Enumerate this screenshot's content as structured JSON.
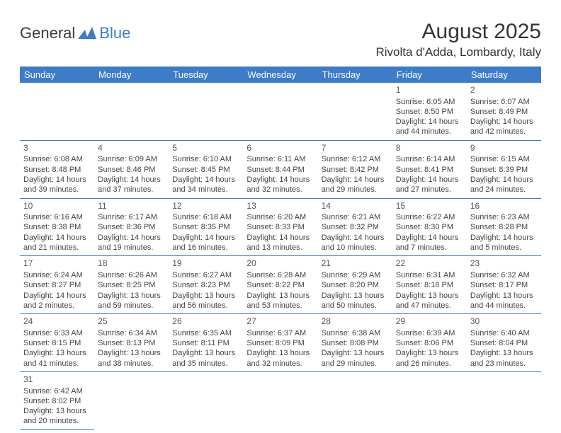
{
  "logo": {
    "text_general": "General",
    "text_blue": "Blue"
  },
  "header": {
    "month_title": "August 2025",
    "location": "Rivolta d'Adda, Lombardy, Italy"
  },
  "colors": {
    "header_bg": "#3d7cc9",
    "header_text": "#ffffff",
    "cell_border": "#3d7cc9",
    "body_text": "#444444"
  },
  "daynames": [
    "Sunday",
    "Monday",
    "Tuesday",
    "Wednesday",
    "Thursday",
    "Friday",
    "Saturday"
  ],
  "weeks": [
    [
      null,
      null,
      null,
      null,
      null,
      {
        "n": "1",
        "sr": "Sunrise: 6:05 AM",
        "ss": "Sunset: 8:50 PM",
        "d1": "Daylight: 14 hours",
        "d2": "and 44 minutes."
      },
      {
        "n": "2",
        "sr": "Sunrise: 6:07 AM",
        "ss": "Sunset: 8:49 PM",
        "d1": "Daylight: 14 hours",
        "d2": "and 42 minutes."
      }
    ],
    [
      {
        "n": "3",
        "sr": "Sunrise: 6:08 AM",
        "ss": "Sunset: 8:48 PM",
        "d1": "Daylight: 14 hours",
        "d2": "and 39 minutes."
      },
      {
        "n": "4",
        "sr": "Sunrise: 6:09 AM",
        "ss": "Sunset: 8:46 PM",
        "d1": "Daylight: 14 hours",
        "d2": "and 37 minutes."
      },
      {
        "n": "5",
        "sr": "Sunrise: 6:10 AM",
        "ss": "Sunset: 8:45 PM",
        "d1": "Daylight: 14 hours",
        "d2": "and 34 minutes."
      },
      {
        "n": "6",
        "sr": "Sunrise: 6:11 AM",
        "ss": "Sunset: 8:44 PM",
        "d1": "Daylight: 14 hours",
        "d2": "and 32 minutes."
      },
      {
        "n": "7",
        "sr": "Sunrise: 6:12 AM",
        "ss": "Sunset: 8:42 PM",
        "d1": "Daylight: 14 hours",
        "d2": "and 29 minutes."
      },
      {
        "n": "8",
        "sr": "Sunrise: 6:14 AM",
        "ss": "Sunset: 8:41 PM",
        "d1": "Daylight: 14 hours",
        "d2": "and 27 minutes."
      },
      {
        "n": "9",
        "sr": "Sunrise: 6:15 AM",
        "ss": "Sunset: 8:39 PM",
        "d1": "Daylight: 14 hours",
        "d2": "and 24 minutes."
      }
    ],
    [
      {
        "n": "10",
        "sr": "Sunrise: 6:16 AM",
        "ss": "Sunset: 8:38 PM",
        "d1": "Daylight: 14 hours",
        "d2": "and 21 minutes."
      },
      {
        "n": "11",
        "sr": "Sunrise: 6:17 AM",
        "ss": "Sunset: 8:36 PM",
        "d1": "Daylight: 14 hours",
        "d2": "and 19 minutes."
      },
      {
        "n": "12",
        "sr": "Sunrise: 6:18 AM",
        "ss": "Sunset: 8:35 PM",
        "d1": "Daylight: 14 hours",
        "d2": "and 16 minutes."
      },
      {
        "n": "13",
        "sr": "Sunrise: 6:20 AM",
        "ss": "Sunset: 8:33 PM",
        "d1": "Daylight: 14 hours",
        "d2": "and 13 minutes."
      },
      {
        "n": "14",
        "sr": "Sunrise: 6:21 AM",
        "ss": "Sunset: 8:32 PM",
        "d1": "Daylight: 14 hours",
        "d2": "and 10 minutes."
      },
      {
        "n": "15",
        "sr": "Sunrise: 6:22 AM",
        "ss": "Sunset: 8:30 PM",
        "d1": "Daylight: 14 hours",
        "d2": "and 7 minutes."
      },
      {
        "n": "16",
        "sr": "Sunrise: 6:23 AM",
        "ss": "Sunset: 8:28 PM",
        "d1": "Daylight: 14 hours",
        "d2": "and 5 minutes."
      }
    ],
    [
      {
        "n": "17",
        "sr": "Sunrise: 6:24 AM",
        "ss": "Sunset: 8:27 PM",
        "d1": "Daylight: 14 hours",
        "d2": "and 2 minutes."
      },
      {
        "n": "18",
        "sr": "Sunrise: 6:26 AM",
        "ss": "Sunset: 8:25 PM",
        "d1": "Daylight: 13 hours",
        "d2": "and 59 minutes."
      },
      {
        "n": "19",
        "sr": "Sunrise: 6:27 AM",
        "ss": "Sunset: 8:23 PM",
        "d1": "Daylight: 13 hours",
        "d2": "and 56 minutes."
      },
      {
        "n": "20",
        "sr": "Sunrise: 6:28 AM",
        "ss": "Sunset: 8:22 PM",
        "d1": "Daylight: 13 hours",
        "d2": "and 53 minutes."
      },
      {
        "n": "21",
        "sr": "Sunrise: 6:29 AM",
        "ss": "Sunset: 8:20 PM",
        "d1": "Daylight: 13 hours",
        "d2": "and 50 minutes."
      },
      {
        "n": "22",
        "sr": "Sunrise: 6:31 AM",
        "ss": "Sunset: 8:18 PM",
        "d1": "Daylight: 13 hours",
        "d2": "and 47 minutes."
      },
      {
        "n": "23",
        "sr": "Sunrise: 6:32 AM",
        "ss": "Sunset: 8:17 PM",
        "d1": "Daylight: 13 hours",
        "d2": "and 44 minutes."
      }
    ],
    [
      {
        "n": "24",
        "sr": "Sunrise: 6:33 AM",
        "ss": "Sunset: 8:15 PM",
        "d1": "Daylight: 13 hours",
        "d2": "and 41 minutes."
      },
      {
        "n": "25",
        "sr": "Sunrise: 6:34 AM",
        "ss": "Sunset: 8:13 PM",
        "d1": "Daylight: 13 hours",
        "d2": "and 38 minutes."
      },
      {
        "n": "26",
        "sr": "Sunrise: 6:35 AM",
        "ss": "Sunset: 8:11 PM",
        "d1": "Daylight: 13 hours",
        "d2": "and 35 minutes."
      },
      {
        "n": "27",
        "sr": "Sunrise: 6:37 AM",
        "ss": "Sunset: 8:09 PM",
        "d1": "Daylight: 13 hours",
        "d2": "and 32 minutes."
      },
      {
        "n": "28",
        "sr": "Sunrise: 6:38 AM",
        "ss": "Sunset: 8:08 PM",
        "d1": "Daylight: 13 hours",
        "d2": "and 29 minutes."
      },
      {
        "n": "29",
        "sr": "Sunrise: 6:39 AM",
        "ss": "Sunset: 8:06 PM",
        "d1": "Daylight: 13 hours",
        "d2": "and 26 minutes."
      },
      {
        "n": "30",
        "sr": "Sunrise: 6:40 AM",
        "ss": "Sunset: 8:04 PM",
        "d1": "Daylight: 13 hours",
        "d2": "and 23 minutes."
      }
    ],
    [
      {
        "n": "31",
        "sr": "Sunrise: 6:42 AM",
        "ss": "Sunset: 8:02 PM",
        "d1": "Daylight: 13 hours",
        "d2": "and 20 minutes."
      },
      null,
      null,
      null,
      null,
      null,
      null
    ]
  ]
}
